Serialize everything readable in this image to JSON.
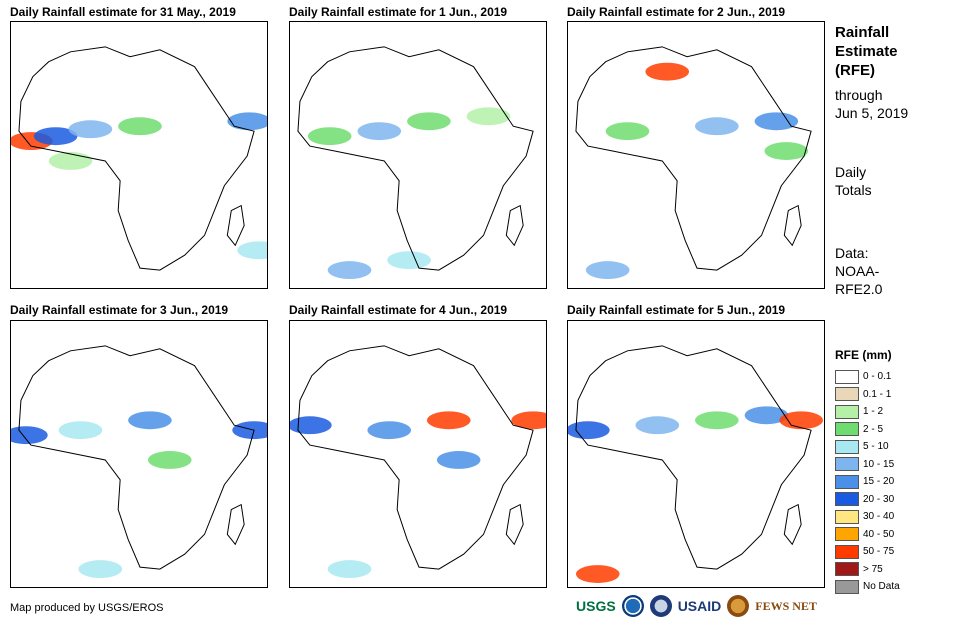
{
  "panels": [
    {
      "title": "Daily Rainfall estimate for 31 May., 2019"
    },
    {
      "title": "Daily Rainfall estimate for 1 Jun., 2019"
    },
    {
      "title": "Daily Rainfall estimate for 2 Jun., 2019"
    },
    {
      "title": "Daily Rainfall estimate for 3 Jun., 2019"
    },
    {
      "title": "Daily Rainfall estimate for 4 Jun., 2019"
    },
    {
      "title": "Daily Rainfall estimate for 5 Jun., 2019"
    }
  ],
  "side": {
    "title_lines": [
      "Rainfall",
      "Estimate",
      "(RFE)"
    ],
    "through": "through",
    "date": "Jun 5, 2019",
    "daily": "Daily",
    "totals": "Totals",
    "data_label": "Data:",
    "data_src1": "NOAA-",
    "data_src2": "RFE2.0"
  },
  "legend": {
    "title": "RFE (mm)",
    "items": [
      {
        "label": "0 - 0.1",
        "color": "#ffffff"
      },
      {
        "label": "0.1 - 1",
        "color": "#e8d7b9"
      },
      {
        "label": "1 - 2",
        "color": "#b4f0a8"
      },
      {
        "label": "2 - 5",
        "color": "#6fdc6f"
      },
      {
        "label": "5 - 10",
        "color": "#a8e8f0"
      },
      {
        "label": "10 - 15",
        "color": "#7fb5ee"
      },
      {
        "label": "15 - 20",
        "color": "#4a90e8"
      },
      {
        "label": "20 - 30",
        "color": "#1a5ae0"
      },
      {
        "label": "30 - 40",
        "color": "#ffe680"
      },
      {
        "label": "40 - 50",
        "color": "#ffa500"
      },
      {
        "label": "50 - 75",
        "color": "#ff3c00"
      },
      {
        "label": "> 75",
        "color": "#a01818"
      },
      {
        "label": "No Data",
        "color": "#999999"
      }
    ]
  },
  "credit": "Map produced by USGS/EROS",
  "logos": {
    "usgs": "USGS",
    "usaid": "USAID",
    "fews": "FEWS NET"
  }
}
